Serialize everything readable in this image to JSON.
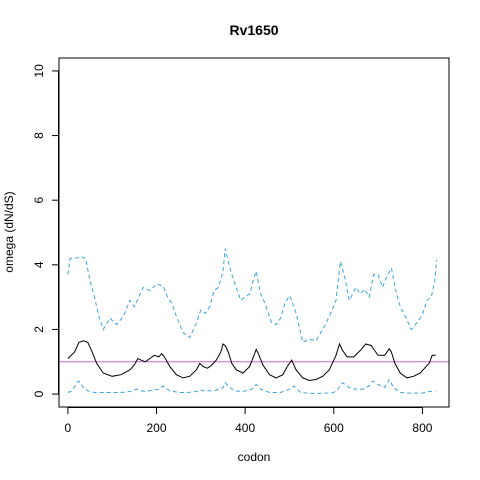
{
  "chart_data": {
    "type": "line",
    "title": "Rv1650",
    "xlabel": "codon",
    "ylabel": "omega (dN/dS)",
    "xlim": [
      -20,
      860
    ],
    "ylim": [
      -0.4,
      10.4
    ],
    "x_ticks": [
      0,
      200,
      400,
      600,
      800
    ],
    "y_ticks": [
      0,
      2,
      4,
      6,
      8,
      10
    ],
    "reference_line": {
      "y": 1,
      "color": "#cc66cc"
    },
    "series": [
      {
        "style": "solid",
        "color": "#000000",
        "x": [
          0,
          15,
          25,
          35,
          45,
          55,
          65,
          80,
          100,
          120,
          140,
          150,
          158,
          165,
          175,
          185,
          195,
          205,
          212,
          220,
          230,
          245,
          260,
          275,
          290,
          298,
          305,
          315,
          325,
          335,
          345,
          350,
          355,
          362,
          370,
          380,
          395,
          410,
          420,
          425,
          430,
          440,
          455,
          470,
          485,
          495,
          505,
          515,
          530,
          545,
          560,
          575,
          590,
          605,
          613,
          620,
          630,
          645,
          660,
          672,
          685,
          692,
          700,
          715,
          725,
          730,
          738,
          750,
          765,
          780,
          795,
          805,
          815,
          822,
          830
        ],
        "y": [
          1.1,
          1.3,
          1.6,
          1.65,
          1.6,
          1.3,
          0.95,
          0.65,
          0.55,
          0.6,
          0.75,
          0.9,
          1.1,
          1.05,
          1.0,
          1.1,
          1.2,
          1.15,
          1.25,
          1.1,
          0.85,
          0.6,
          0.5,
          0.55,
          0.75,
          0.95,
          0.85,
          0.8,
          0.9,
          1.05,
          1.3,
          1.55,
          1.5,
          1.3,
          0.95,
          0.75,
          0.65,
          0.85,
          1.2,
          1.38,
          1.25,
          0.9,
          0.6,
          0.5,
          0.6,
          0.85,
          1.05,
          0.75,
          0.5,
          0.42,
          0.45,
          0.55,
          0.75,
          1.2,
          1.55,
          1.35,
          1.15,
          1.15,
          1.35,
          1.55,
          1.5,
          1.35,
          1.2,
          1.2,
          1.4,
          1.3,
          0.95,
          0.65,
          0.5,
          0.55,
          0.65,
          0.8,
          0.95,
          1.2,
          1.2
        ]
      },
      {
        "style": "dashed",
        "color": "#3ba3dd",
        "x": [
          0,
          5,
          15,
          30,
          40,
          50,
          60,
          70,
          80,
          95,
          110,
          125,
          140,
          150,
          160,
          170,
          185,
          200,
          215,
          225,
          235,
          245,
          260,
          275,
          290,
          300,
          310,
          320,
          330,
          340,
          350,
          355,
          362,
          370,
          380,
          390,
          400,
          410,
          420,
          425,
          435,
          445,
          460,
          470,
          480,
          490,
          500,
          505,
          515,
          530,
          545,
          560,
          575,
          590,
          605,
          615,
          625,
          635,
          650,
          660,
          670,
          680,
          690,
          700,
          710,
          720,
          730,
          740,
          750,
          760,
          775,
          790,
          800,
          810,
          820,
          828,
          832
        ],
        "y": [
          3.7,
          4.2,
          4.2,
          4.25,
          4.2,
          3.5,
          3.0,
          2.4,
          2.0,
          2.35,
          2.15,
          2.4,
          2.9,
          2.7,
          3.0,
          3.3,
          3.2,
          3.4,
          3.35,
          3.0,
          2.8,
          2.4,
          1.9,
          1.75,
          2.2,
          2.6,
          2.5,
          2.7,
          3.2,
          3.3,
          3.8,
          4.5,
          4.1,
          3.7,
          3.3,
          2.9,
          3.0,
          3.1,
          3.6,
          3.8,
          3.1,
          2.8,
          2.2,
          2.15,
          2.35,
          2.8,
          3.05,
          2.9,
          2.5,
          1.6,
          1.7,
          1.65,
          2.0,
          2.4,
          2.9,
          4.1,
          3.6,
          2.9,
          3.3,
          3.1,
          3.25,
          3.0,
          3.7,
          3.7,
          3.3,
          3.65,
          3.9,
          3.2,
          2.7,
          2.45,
          2.0,
          2.25,
          2.45,
          2.9,
          3.0,
          3.5,
          4.15
        ]
      },
      {
        "style": "dashed",
        "color": "#3ba3dd",
        "x": [
          0,
          10,
          20,
          25,
          35,
          45,
          60,
          80,
          100,
          120,
          140,
          155,
          165,
          175,
          190,
          205,
          215,
          230,
          250,
          270,
          290,
          300,
          310,
          330,
          350,
          355,
          362,
          375,
          395,
          415,
          425,
          435,
          455,
          480,
          500,
          510,
          525,
          550,
          575,
          600,
          612,
          620,
          635,
          650,
          665,
          680,
          688,
          700,
          715,
          725,
          735,
          750,
          770,
          800,
          815,
          830
        ],
        "y": [
          0.05,
          0.1,
          0.35,
          0.4,
          0.2,
          0.1,
          0.05,
          0.05,
          0.05,
          0.05,
          0.08,
          0.15,
          0.1,
          0.08,
          0.12,
          0.15,
          0.25,
          0.1,
          0.05,
          0.05,
          0.08,
          0.12,
          0.1,
          0.1,
          0.2,
          0.35,
          0.25,
          0.1,
          0.08,
          0.15,
          0.3,
          0.15,
          0.05,
          0.05,
          0.15,
          0.25,
          0.05,
          0.02,
          0.02,
          0.05,
          0.2,
          0.35,
          0.2,
          0.15,
          0.15,
          0.25,
          0.4,
          0.3,
          0.2,
          0.45,
          0.2,
          0.05,
          0.03,
          0.03,
          0.08,
          0.1
        ]
      }
    ]
  }
}
